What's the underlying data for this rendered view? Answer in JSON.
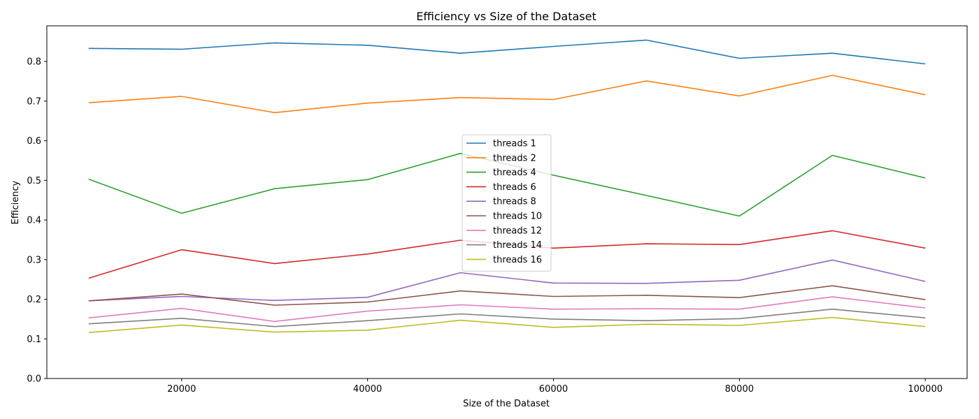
{
  "chart_data": {
    "type": "line",
    "title": "Efficiency vs Size of the Dataset",
    "xlabel": "Size of the Dataset",
    "ylabel": "Efficiency",
    "x": [
      10000,
      20000,
      30000,
      40000,
      50000,
      60000,
      70000,
      80000,
      90000,
      100000
    ],
    "xlim": [
      5500,
      104500
    ],
    "ylim": [
      0,
      0.89
    ],
    "xticks": [
      20000,
      40000,
      60000,
      80000,
      100000
    ],
    "xtick_labels": [
      "20000",
      "40000",
      "60000",
      "80000",
      "100000"
    ],
    "yticks": [
      0.0,
      0.1,
      0.2,
      0.3,
      0.4,
      0.5,
      0.6,
      0.7,
      0.8
    ],
    "ytick_labels": [
      "0.0",
      "0.1",
      "0.2",
      "0.3",
      "0.4",
      "0.5",
      "0.6",
      "0.7",
      "0.8"
    ],
    "grid": false,
    "legend_position": "center",
    "series": [
      {
        "name": "threads 1",
        "color": "#1f77b4",
        "values": [
          0.833,
          0.831,
          0.847,
          0.841,
          0.821,
          0.838,
          0.854,
          0.808,
          0.821,
          0.794
        ]
      },
      {
        "name": "threads 2",
        "color": "#ff7f0e",
        "values": [
          0.696,
          0.712,
          0.671,
          0.695,
          0.709,
          0.704,
          0.751,
          0.713,
          0.765,
          0.716
        ]
      },
      {
        "name": "threads 4",
        "color": "#2ca02c",
        "values": [
          0.503,
          0.417,
          0.479,
          0.502,
          0.568,
          0.513,
          0.462,
          0.41,
          0.563,
          0.506
        ]
      },
      {
        "name": "threads 6",
        "color": "#d62728",
        "values": [
          0.253,
          0.325,
          0.29,
          0.314,
          0.349,
          0.329,
          0.34,
          0.338,
          0.373,
          0.329
        ]
      },
      {
        "name": "threads 8",
        "color": "#9467bd",
        "values": [
          0.196,
          0.207,
          0.197,
          0.205,
          0.267,
          0.241,
          0.24,
          0.248,
          0.299,
          0.245
        ]
      },
      {
        "name": "threads 10",
        "color": "#8c564b",
        "values": [
          0.196,
          0.213,
          0.185,
          0.193,
          0.221,
          0.207,
          0.21,
          0.204,
          0.234,
          0.199
        ]
      },
      {
        "name": "threads 12",
        "color": "#e377c2",
        "values": [
          0.153,
          0.177,
          0.144,
          0.17,
          0.186,
          0.175,
          0.176,
          0.175,
          0.206,
          0.178
        ]
      },
      {
        "name": "threads 14",
        "color": "#7f7f7f",
        "values": [
          0.138,
          0.152,
          0.131,
          0.146,
          0.163,
          0.15,
          0.146,
          0.151,
          0.175,
          0.153
        ]
      },
      {
        "name": "threads 16",
        "color": "#bcbd22",
        "values": [
          0.116,
          0.135,
          0.117,
          0.122,
          0.147,
          0.129,
          0.137,
          0.134,
          0.154,
          0.131
        ]
      }
    ]
  }
}
